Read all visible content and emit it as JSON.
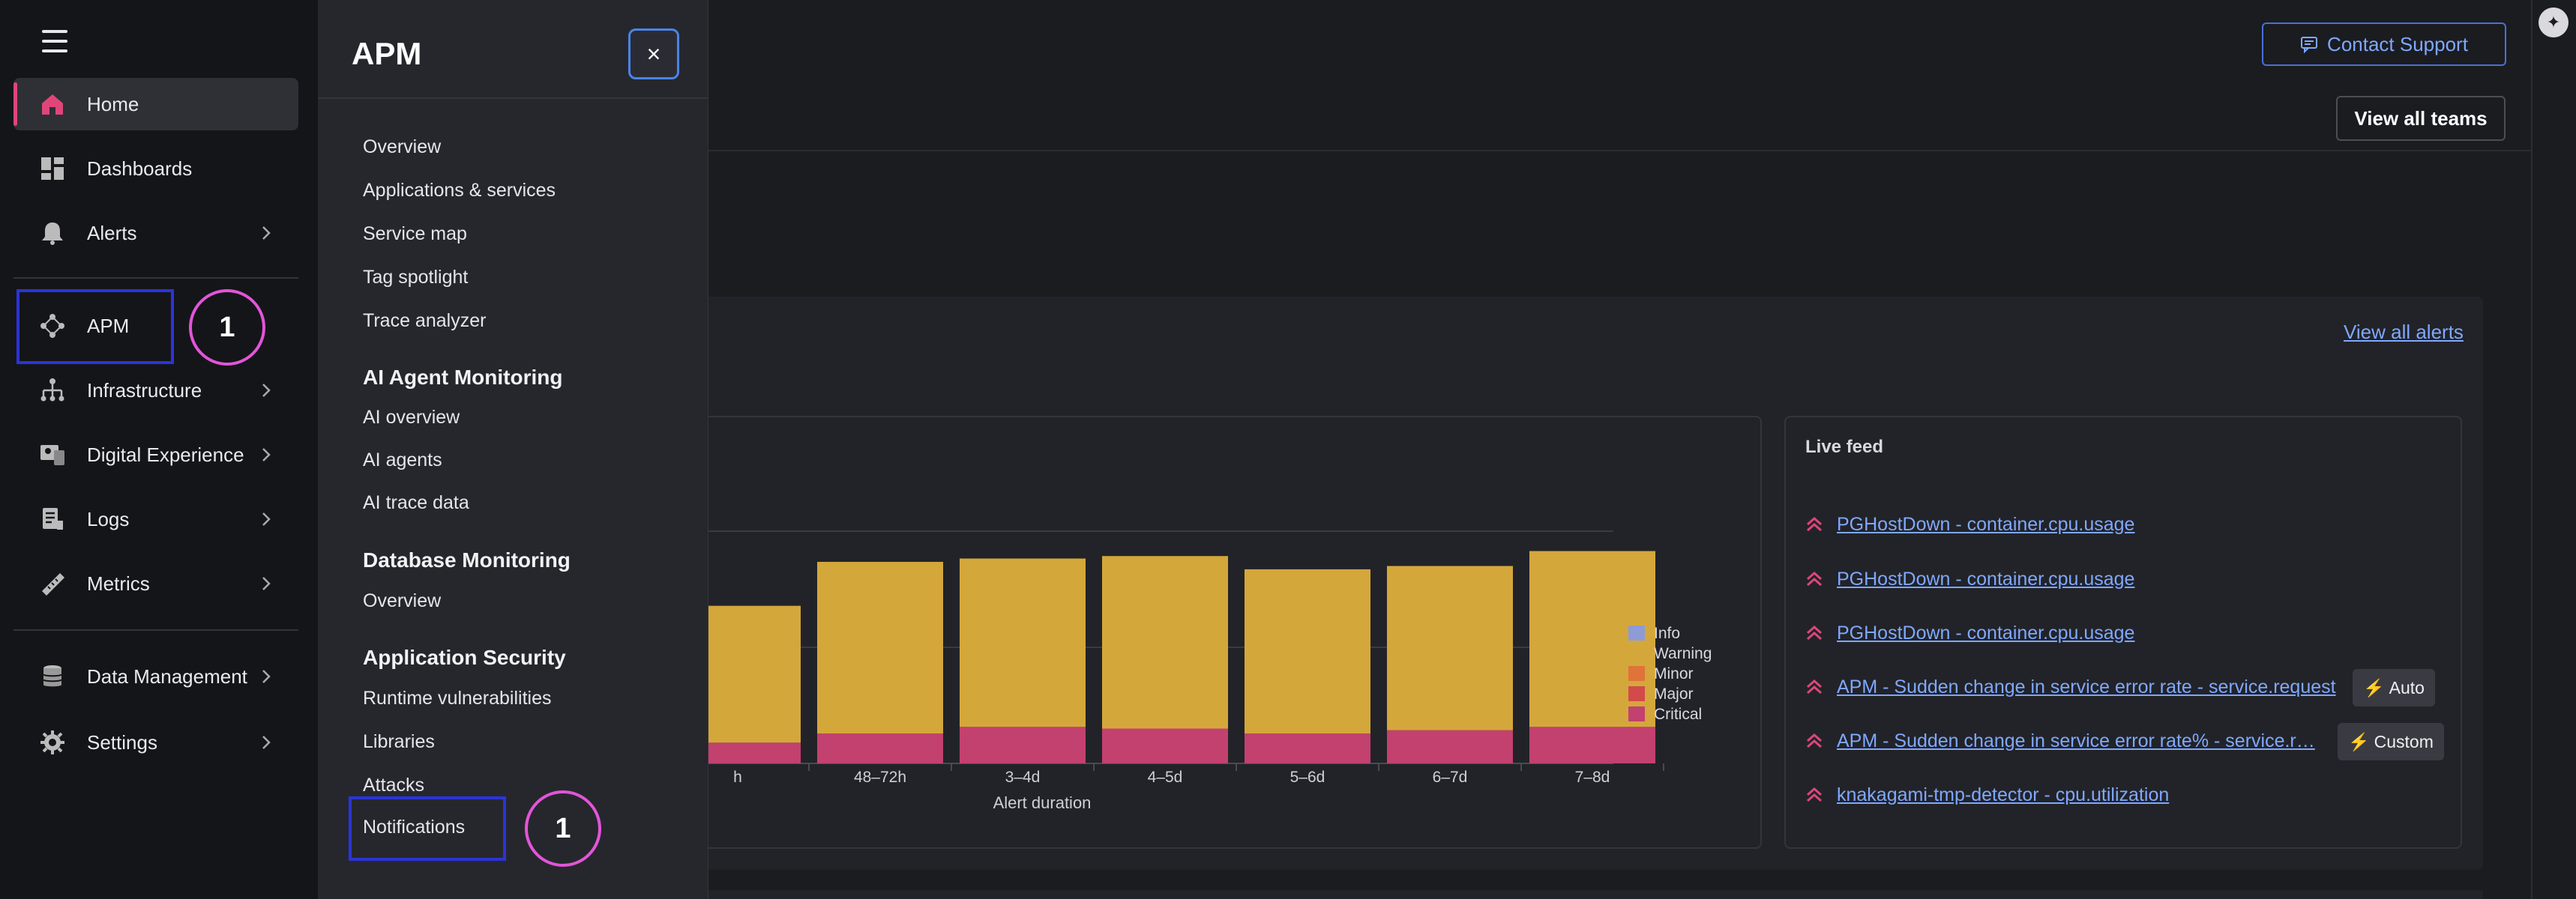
{
  "leftnav": {
    "items": [
      {
        "label": "Home",
        "icon": "home-icon",
        "active": true,
        "has_chevron": false
      },
      {
        "label": "Dashboards",
        "icon": "dashboards-icon",
        "has_chevron": false
      },
      {
        "label": "Alerts",
        "icon": "bell-icon",
        "has_chevron": true
      },
      {
        "label": "APM",
        "icon": "apm-icon",
        "has_chevron": false
      },
      {
        "label": "Infrastructure",
        "icon": "infrastructure-icon",
        "has_chevron": true
      },
      {
        "label": "Digital Experience",
        "icon": "digital-experience-icon",
        "has_chevron": true
      },
      {
        "label": "Logs",
        "icon": "logs-icon",
        "has_chevron": true
      },
      {
        "label": "Metrics",
        "icon": "metrics-icon",
        "has_chevron": true
      },
      {
        "label": "Data Management",
        "icon": "data-management-icon",
        "has_chevron": true
      },
      {
        "label": "Settings",
        "icon": "gear-icon",
        "has_chevron": true
      }
    ]
  },
  "flyout": {
    "title": "APM",
    "close_label": "×",
    "apm_links": [
      "Overview",
      "Applications & services",
      "Service map",
      "Tag spotlight",
      "Trace analyzer"
    ],
    "ai_heading": "AI Agent Monitoring",
    "ai_links": [
      "AI overview",
      "AI agents",
      "AI trace data"
    ],
    "db_heading": "Database Monitoring",
    "db_links": [
      "Overview"
    ],
    "security_heading": "Application Security",
    "security_links": [
      "Runtime vulnerabilities",
      "Libraries",
      "Attacks",
      "Notifications"
    ]
  },
  "annotations": {
    "nav_apm_marker": "1",
    "notifications_marker": "1"
  },
  "header": {
    "contact_support": "Contact Support",
    "view_all_teams": "View all teams"
  },
  "alerts_card": {
    "view_all_alerts": "View all alerts"
  },
  "chart_data": {
    "type": "bar",
    "stacked": true,
    "xlabel": "Alert duration",
    "categories": [
      "h",
      "48–72h",
      "3–4d",
      "4–5d",
      "5–6d",
      "6–7d",
      "7–8d"
    ],
    "series": [
      {
        "name": "Critical",
        "color": "#c3416f",
        "values": [
          25,
          36,
          44,
          42,
          36,
          40,
          44
        ]
      },
      {
        "name": "Warning",
        "color": "#d4a73b",
        "values": [
          165,
          207,
          203,
          208,
          198,
          198,
          212
        ]
      }
    ],
    "legend": [
      {
        "name": "Info",
        "color": "#8e9bd6"
      },
      {
        "name": "Warning",
        "color": "#d4a73b"
      },
      {
        "name": "Minor",
        "color": "#e0733a"
      },
      {
        "name": "Major",
        "color": "#d24a4a"
      },
      {
        "name": "Critical",
        "color": "#c3416f"
      }
    ],
    "legend_position": "right",
    "grid": true
  },
  "live_feed": {
    "title": "Live feed",
    "items": [
      {
        "text": "PGHostDown - container.cpu.usage"
      },
      {
        "text": "PGHostDown - container.cpu.usage"
      },
      {
        "text": "PGHostDown - container.cpu.usage"
      },
      {
        "text": "APM - Sudden change in service error rate - service.request",
        "tag": "Auto"
      },
      {
        "text": "APM - Sudden change in service error rate% - service.r…",
        "tag": "Custom"
      },
      {
        "text": "knakagami-tmp-detector - cpu.utilization"
      }
    ]
  }
}
